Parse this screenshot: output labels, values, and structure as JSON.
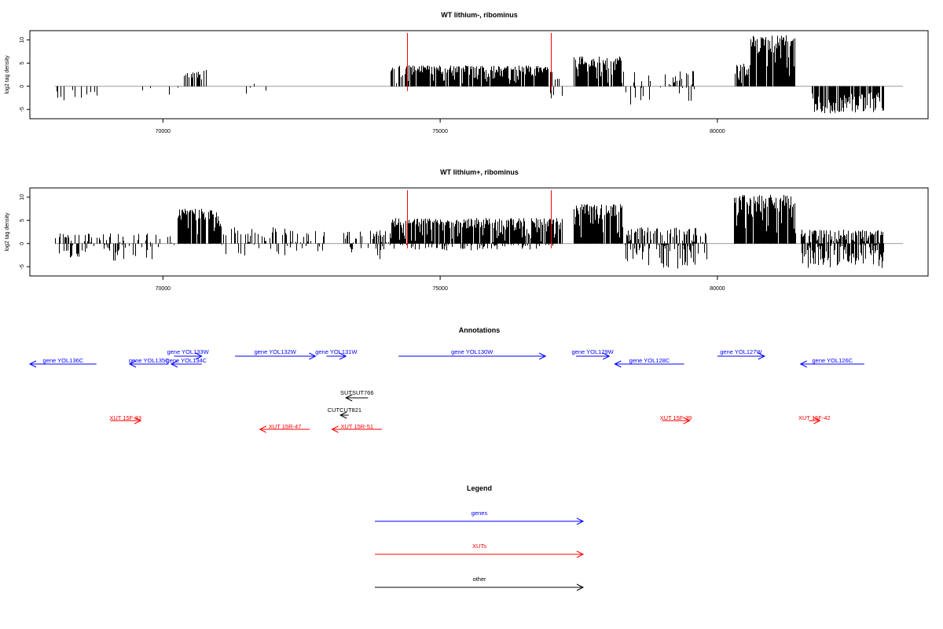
{
  "chart_data": [
    {
      "type": "bar",
      "title": "WT lithium-, ribominus",
      "ylabel": "log2 tag density",
      "xlabel": "",
      "xlim": [
        67600,
        83800
      ],
      "ylim": [
        -7,
        12
      ],
      "xticks": [
        70000,
        75000,
        80000
      ],
      "yticks": [
        -5,
        0,
        5,
        10
      ],
      "zero_line": true,
      "markers": [
        74400,
        77000
      ],
      "marker_color": "#ff0000",
      "bar_color": "#000000",
      "segments": [
        {
          "start": 68050,
          "end": 68500,
          "min": -3.5,
          "max": -0.5,
          "density": 0.015,
          "seed": 11
        },
        {
          "start": 68500,
          "end": 69000,
          "min": -3.0,
          "max": -0.5,
          "density": 0.012,
          "seed": 12
        },
        {
          "start": 69600,
          "end": 70300,
          "min": -3.0,
          "max": 1.5,
          "density": 0.006,
          "seed": 13
        },
        {
          "start": 70300,
          "end": 70850,
          "min": 1.0,
          "max": 3.8,
          "density": 0.04,
          "seed": 14
        },
        {
          "start": 71450,
          "end": 71950,
          "min": -3.0,
          "max": 1.0,
          "density": 0.008,
          "seed": 15
        },
        {
          "start": 74100,
          "end": 74350,
          "min": 0.5,
          "max": 4.5,
          "density": 0.06,
          "seed": 16
        },
        {
          "start": 74350,
          "end": 76950,
          "min": 0.3,
          "max": 4.5,
          "density": 0.16,
          "seed": 17
        },
        {
          "start": 76950,
          "end": 77200,
          "min": -3.0,
          "max": 3.5,
          "density": 0.04,
          "seed": 18
        },
        {
          "start": 77400,
          "end": 78300,
          "min": 0.5,
          "max": 6.5,
          "density": 0.12,
          "seed": 19
        },
        {
          "start": 78300,
          "end": 79600,
          "min": -4.5,
          "max": 3.5,
          "density": 0.03,
          "seed": 20
        },
        {
          "start": 80300,
          "end": 80600,
          "min": 0.5,
          "max": 5.0,
          "density": 0.12,
          "seed": 21
        },
        {
          "start": 80600,
          "end": 81400,
          "min": 2.0,
          "max": 11.0,
          "density": 0.18,
          "seed": 22
        },
        {
          "start": 81700,
          "end": 83000,
          "min": -6.0,
          "max": -1.0,
          "density": 0.14,
          "seed": 23
        }
      ]
    },
    {
      "type": "bar",
      "title": "WT lithium+, ribominus",
      "ylabel": "log2 tag density",
      "xlabel": "",
      "xlim": [
        67600,
        83800
      ],
      "ylim": [
        -7,
        12
      ],
      "xticks": [
        70000,
        75000,
        80000
      ],
      "yticks": [
        -5,
        0,
        5,
        10
      ],
      "zero_line": true,
      "markers": [
        74400,
        77000
      ],
      "marker_color": "#ff0000",
      "bar_color": "#000000",
      "segments": [
        {
          "start": 68050,
          "end": 69800,
          "min": -4.0,
          "max": 2.2,
          "density": 0.05,
          "seed": 31
        },
        {
          "start": 69800,
          "end": 70250,
          "min": -2.0,
          "max": 2.0,
          "density": 0.02,
          "seed": 32
        },
        {
          "start": 70250,
          "end": 71050,
          "min": 0.5,
          "max": 7.5,
          "density": 0.2,
          "seed": 33
        },
        {
          "start": 71050,
          "end": 72900,
          "min": -3.0,
          "max": 3.5,
          "density": 0.04,
          "seed": 34
        },
        {
          "start": 73200,
          "end": 74100,
          "min": -3.5,
          "max": 3.0,
          "density": 0.05,
          "seed": 35
        },
        {
          "start": 74100,
          "end": 77200,
          "min": -1.5,
          "max": 5.5,
          "density": 0.2,
          "seed": 36
        },
        {
          "start": 77400,
          "end": 78300,
          "min": 0.5,
          "max": 8.5,
          "density": 0.18,
          "seed": 37
        },
        {
          "start": 78300,
          "end": 79800,
          "min": -5.5,
          "max": 3.5,
          "density": 0.1,
          "seed": 38
        },
        {
          "start": 80300,
          "end": 81400,
          "min": 0.5,
          "max": 10.5,
          "density": 0.2,
          "seed": 39
        },
        {
          "start": 81500,
          "end": 83000,
          "min": -5.5,
          "max": 3.0,
          "density": 0.16,
          "seed": 40
        }
      ]
    }
  ],
  "annotations": {
    "title": "Annotations",
    "xlim": [
      67600,
      83800
    ],
    "tracks": [
      {
        "label": "gene YOL136C",
        "start": 67600,
        "end": 68800,
        "strand": "-",
        "row": 0,
        "color": "#0000ff"
      },
      {
        "label": "gene YOL135C",
        "start": 69400,
        "end": 70100,
        "strand": "-",
        "row": 0,
        "color": "#0000ff"
      },
      {
        "label": "gene YOL134C",
        "start": 70150,
        "end": 70700,
        "strand": "-",
        "row": 0,
        "color": "#0000ff"
      },
      {
        "label": "gene YOL133W",
        "start": 70200,
        "end": 70700,
        "strand": "+",
        "row": 1,
        "color": "#0000ff"
      },
      {
        "label": "gene YOL132W",
        "start": 71300,
        "end": 72750,
        "strand": "+",
        "row": 1,
        "color": "#0000ff"
      },
      {
        "label": "gene YOL131W",
        "start": 72950,
        "end": 73300,
        "strand": "+",
        "row": 1,
        "color": "#0000ff"
      },
      {
        "label": "gene YOL130W",
        "start": 74250,
        "end": 76900,
        "strand": "+",
        "row": 1,
        "color": "#0000ff"
      },
      {
        "label": "gene YOL129W",
        "start": 77450,
        "end": 78050,
        "strand": "+",
        "row": 1,
        "color": "#0000ff"
      },
      {
        "label": "gene YOL128C",
        "start": 78150,
        "end": 79400,
        "strand": "-",
        "row": 0,
        "color": "#0000ff"
      },
      {
        "label": "gene YOL127W",
        "start": 80000,
        "end": 80850,
        "strand": "+",
        "row": 1,
        "color": "#0000ff"
      },
      {
        "label": "gene YOL126C",
        "start": 81500,
        "end": 82650,
        "strand": "-",
        "row": 0,
        "color": "#0000ff"
      },
      {
        "label": "SUTSUT766",
        "start": 73300,
        "end": 73700,
        "strand": "-",
        "row": 2,
        "color": "#000000"
      },
      {
        "label": "CUTCUT821",
        "start": 73200,
        "end": 73350,
        "strand": "-",
        "row": 3,
        "color": "#000000"
      },
      {
        "label": "XUT 15F-33",
        "start": 69050,
        "end": 69600,
        "strand": "+",
        "row": 4,
        "color": "#ff0000"
      },
      {
        "label": "XUT 15R-47",
        "start": 71750,
        "end": 72650,
        "strand": "-",
        "row": 5,
        "color": "#ff0000"
      },
      {
        "label": "XUT 15R-51",
        "start": 73050,
        "end": 73950,
        "strand": "-",
        "row": 5,
        "color": "#ff0000"
      },
      {
        "label": "XUT 15F-39",
        "start": 79000,
        "end": 79500,
        "strand": "+",
        "row": 4,
        "color": "#ff0000"
      },
      {
        "label": "XUT 15F-42",
        "start": 81650,
        "end": 81850,
        "strand": "+",
        "row": 4,
        "color": "#ff0000"
      }
    ]
  },
  "legend": {
    "title": "Legend",
    "items": [
      {
        "label": "genes",
        "color": "#0000ff"
      },
      {
        "label": "XUTs",
        "color": "#ff0000"
      },
      {
        "label": "other",
        "color": "#000000"
      }
    ]
  }
}
